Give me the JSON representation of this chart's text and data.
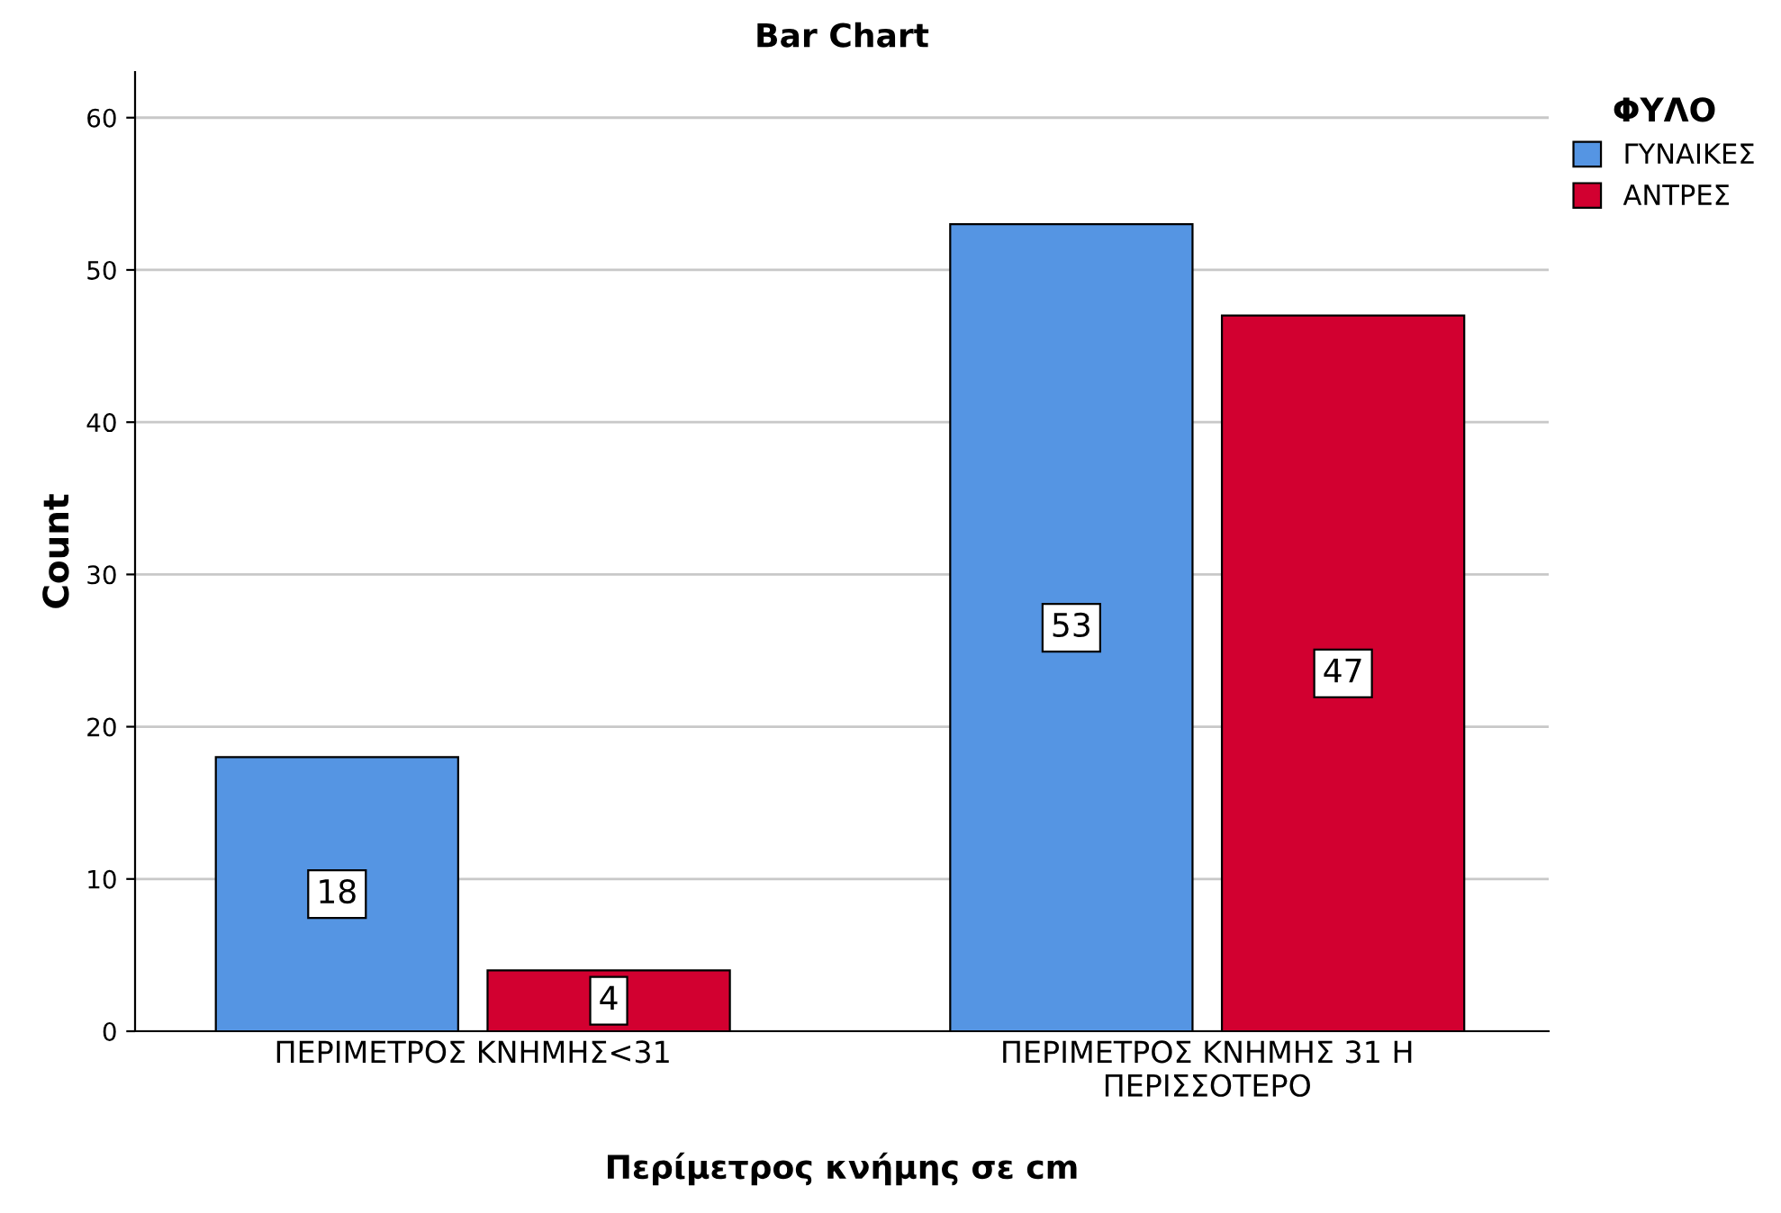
{
  "chart_data": {
    "type": "bar",
    "title": "Bar Chart",
    "xlabel": "Περίμετρος κνήμης σε cm",
    "ylabel": "Count",
    "legend_title": "ΦΥΛΟ",
    "categories": [
      "ΠΕΡΙΜΕΤΡΟΣ ΚΝΗΜΗΣ<31",
      "ΠΕΡΙΜΕΤΡΟΣ ΚΝΗΜΗΣ 31 Η\nΠΕΡΙΣΣΟΤΕΡΟ"
    ],
    "series": [
      {
        "name": "ΓΥΝΑΙΚΕΣ",
        "color": "#5595e3",
        "values": [
          18,
          53
        ]
      },
      {
        "name": "ΑΝΤΡΕΣ",
        "color": "#d20030",
        "values": [
          4,
          47
        ]
      }
    ],
    "ylim": [
      0,
      63
    ],
    "yticks": [
      0,
      10,
      20,
      30,
      40,
      50,
      60
    ],
    "grid": "y",
    "legend": "top right",
    "data_labels": true
  }
}
